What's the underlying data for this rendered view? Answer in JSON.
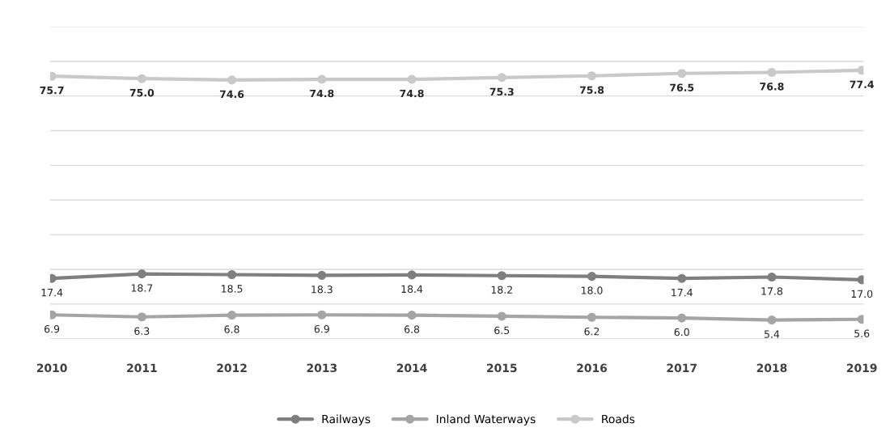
{
  "chart_data": {
    "type": "line",
    "categories": [
      "2010",
      "2011",
      "2012",
      "2013",
      "2014",
      "2015",
      "2016",
      "2017",
      "2018",
      "2019"
    ],
    "series": [
      {
        "name": "Railways",
        "color": "#7f7f7f",
        "values": [
          17.4,
          18.7,
          18.5,
          18.3,
          18.4,
          18.2,
          18.0,
          17.4,
          17.8,
          17.0
        ],
        "value_labels": [
          "17.4",
          "18.7",
          "18.5",
          "18.3",
          "18.4",
          "18.2",
          "18.0",
          "17.4",
          "17.8",
          "17.0"
        ]
      },
      {
        "name": "Inland Waterways",
        "color": "#a5a5a5",
        "values": [
          6.9,
          6.3,
          6.8,
          6.9,
          6.8,
          6.5,
          6.2,
          6.0,
          5.4,
          5.6
        ],
        "value_labels": [
          "6.9",
          "6.3",
          "6.8",
          "6.9",
          "6.8",
          "6.5",
          "6.2",
          "6.0",
          "5.4",
          "5.6"
        ]
      },
      {
        "name": "Roads",
        "color": "#c9c9c9",
        "values": [
          75.7,
          75.0,
          74.6,
          74.8,
          74.8,
          75.3,
          75.8,
          76.5,
          76.8,
          77.4
        ],
        "value_labels": [
          "75.7",
          "75.0",
          "74.6",
          "74.8",
          "74.8",
          "75.3",
          "75.8",
          "76.5",
          "76.8",
          "77.4"
        ]
      }
    ],
    "ylim": [
      0,
      90
    ],
    "yticks": [
      {
        "value": 0,
        "label": null
      },
      {
        "value": 10,
        "label": null
      },
      {
        "value": 20,
        "label": null
      },
      {
        "value": 30,
        "label": null
      },
      {
        "value": 40,
        "label": null
      },
      {
        "value": 50,
        "label": null
      },
      {
        "value": 60,
        "label": null
      },
      {
        "value": 70,
        "label": null
      },
      {
        "value": 80,
        "label": null
      },
      {
        "value": 90,
        "label": null
      }
    ],
    "tick_labels": "x",
    "grid": "y",
    "legend": "bottom",
    "marker": "circle",
    "line_style": "solid"
  }
}
